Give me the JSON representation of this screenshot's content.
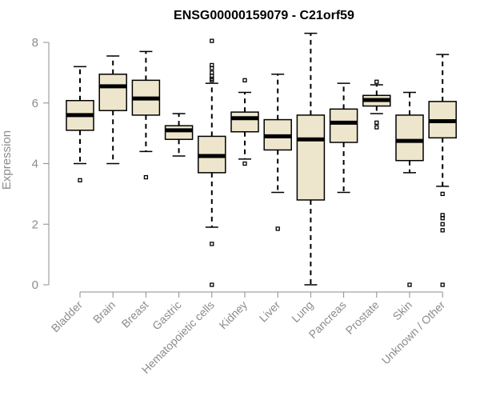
{
  "chart_data": {
    "type": "boxplot",
    "title": "ENSG00000159079 - C21orf59",
    "xlabel": "",
    "ylabel": "Expression",
    "ylim": [
      0,
      8.3
    ],
    "yticks": [
      0,
      2,
      4,
      6,
      8
    ],
    "box_fill": "#ede6cc",
    "categories": [
      "Bladder",
      "Brain",
      "Breast",
      "Gastric",
      "Hematopoietic cells",
      "Kidney",
      "Liver",
      "Lung",
      "Pancreas",
      "Prostate",
      "Skin",
      "Unknown / Other"
    ],
    "boxes": [
      {
        "q1": 5.1,
        "median": 5.6,
        "q3": 6.08,
        "whisker_low": 4.0,
        "whisker_high": 7.2,
        "outliers": [
          3.45
        ]
      },
      {
        "q1": 5.75,
        "median": 6.55,
        "q3": 6.95,
        "whisker_low": 4.0,
        "whisker_high": 7.55,
        "outliers": []
      },
      {
        "q1": 5.6,
        "median": 6.15,
        "q3": 6.75,
        "whisker_low": 4.4,
        "whisker_high": 7.7,
        "outliers": [
          3.55
        ]
      },
      {
        "q1": 4.8,
        "median": 5.1,
        "q3": 5.25,
        "whisker_low": 4.25,
        "whisker_high": 5.65,
        "outliers": []
      },
      {
        "q1": 3.7,
        "median": 4.25,
        "q3": 4.9,
        "whisker_low": 1.9,
        "whisker_high": 6.65,
        "outliers": [
          8.05,
          7.25,
          7.15,
          7.0,
          6.9,
          6.8,
          6.75,
          1.35,
          0.0
        ]
      },
      {
        "q1": 5.05,
        "median": 5.5,
        "q3": 5.7,
        "whisker_low": 4.15,
        "whisker_high": 6.35,
        "outliers": [
          6.75,
          4.0
        ]
      },
      {
        "q1": 4.45,
        "median": 4.9,
        "q3": 5.45,
        "whisker_low": 3.05,
        "whisker_high": 6.95,
        "outliers": [
          1.85
        ]
      },
      {
        "q1": 2.8,
        "median": 4.8,
        "q3": 5.6,
        "whisker_low": 0.0,
        "whisker_high": 8.3,
        "outliers": []
      },
      {
        "q1": 4.7,
        "median": 5.35,
        "q3": 5.8,
        "whisker_low": 3.05,
        "whisker_high": 6.65,
        "outliers": []
      },
      {
        "q1": 5.9,
        "median": 6.1,
        "q3": 6.25,
        "whisker_low": 5.65,
        "whisker_high": 6.6,
        "outliers": [
          6.7,
          5.35,
          5.2
        ]
      },
      {
        "q1": 4.1,
        "median": 4.75,
        "q3": 5.6,
        "whisker_low": 3.7,
        "whisker_high": 6.35,
        "outliers": [
          0.0
        ]
      },
      {
        "q1": 4.85,
        "median": 5.4,
        "q3": 6.05,
        "whisker_low": 3.25,
        "whisker_high": 7.6,
        "outliers": [
          3.0,
          2.3,
          2.2,
          2.0,
          1.8,
          0.0
        ]
      }
    ]
  }
}
